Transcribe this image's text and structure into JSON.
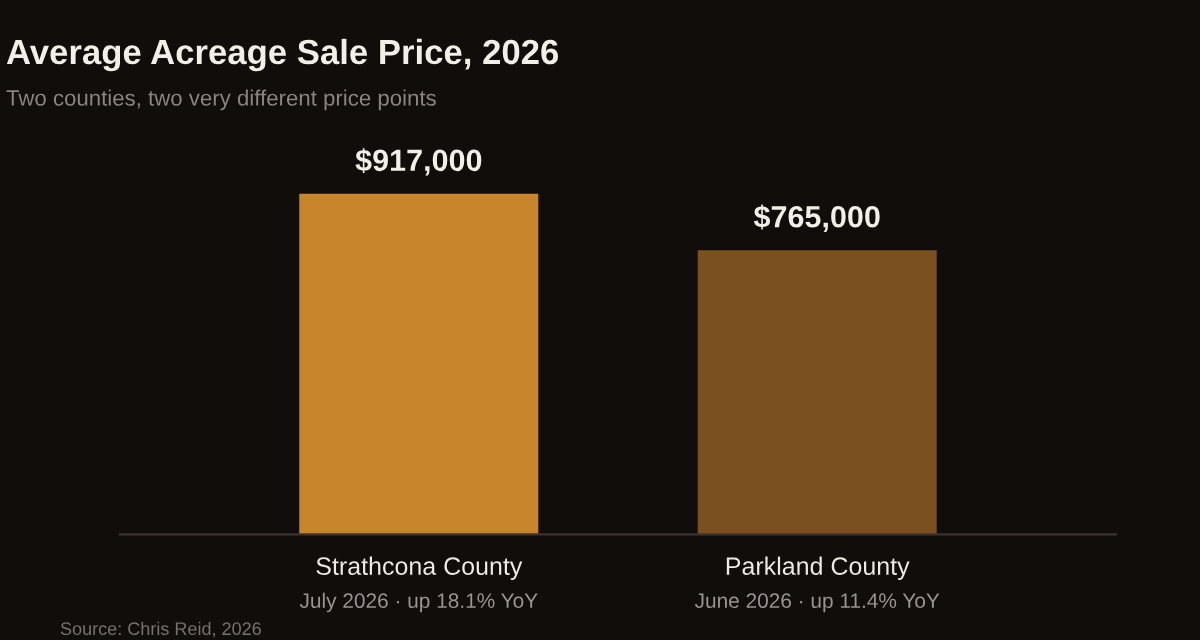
{
  "chart_data": {
    "type": "bar",
    "title": "Average Acreage Sale Price, 2026",
    "subtitle": "Two counties, two very different price points",
    "categories": [
      "Strathcona County",
      "Parkland County"
    ],
    "values": [
      917000,
      765000
    ],
    "colors": [
      "#c8862c",
      "#7a501f"
    ],
    "value_labels": [
      "$917,000",
      "$765,000"
    ],
    "tick_labels": "x",
    "grid": false,
    "legend": false,
    "annotations": [
      "July 2026 · up 18.1% YoY",
      "June 2026 · up 11.4% YoY",
      "Source: Chris Reid, 2026"
    ]
  }
}
